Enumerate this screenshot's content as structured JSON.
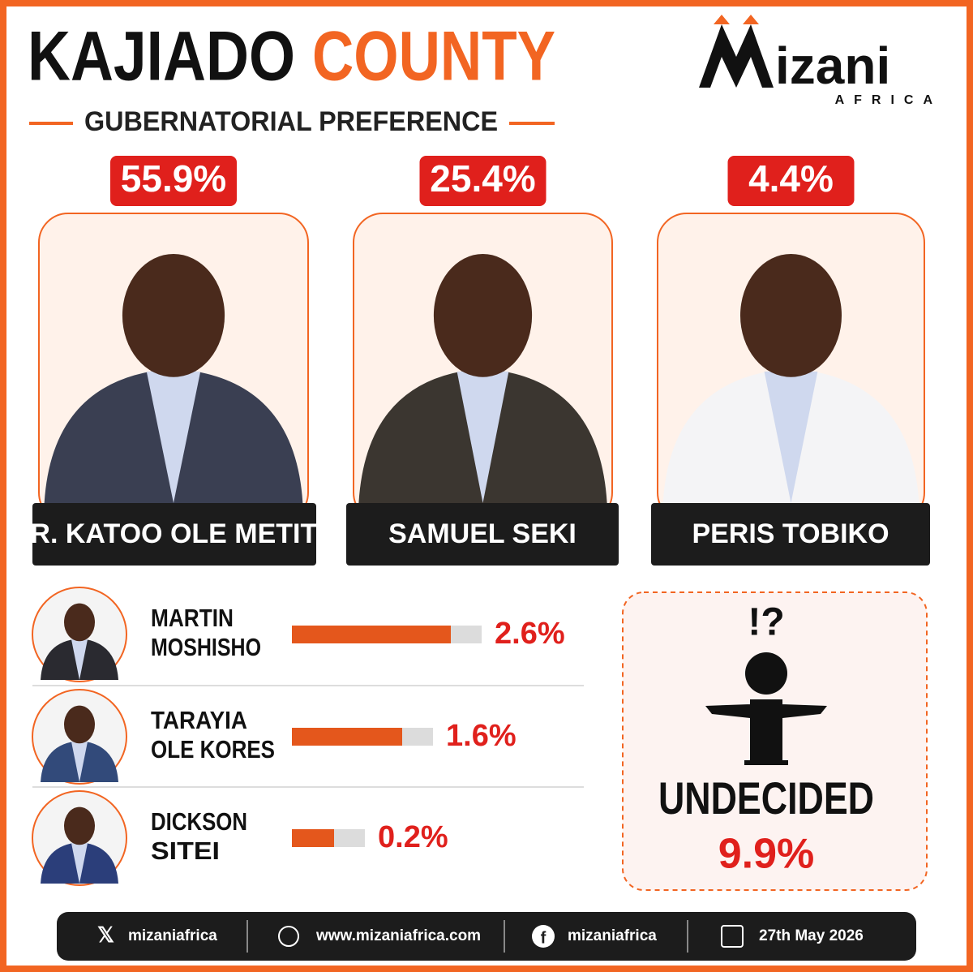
{
  "header": {
    "title_part1": "KAJIADO",
    "title_part2": "COUNTY",
    "subtitle": "GUBERNATORIAL PREFERENCE"
  },
  "logo": {
    "name": "izani",
    "tagline": "AFRICA"
  },
  "leaders": [
    {
      "name": "DR. KATOO OLE METITO",
      "share": "55.9%"
    },
    {
      "name": "SAMUEL SEKI",
      "share": "25.4%"
    },
    {
      "name": "PERIS TOBIKO",
      "share": "4.4%"
    }
  ],
  "others": [
    {
      "name": [
        "MARTIN",
        "MOSHISHO"
      ],
      "value": 2.6,
      "label": "2.6%"
    },
    {
      "name": [
        "TARAYIA",
        "OLE KORES"
      ],
      "value": 1.6,
      "label": "1.6%"
    },
    {
      "name": [
        "DICKSON",
        "SITEI"
      ],
      "value": 0.2,
      "label": "0.2%"
    }
  ],
  "undecided": {
    "icon_text": "!?",
    "label": "UNDECIDED",
    "share": "9.9%"
  },
  "footer": {
    "x": "mizaniafrica",
    "website": "www.mizaniafrica.com",
    "facebook": "mizaniafrica",
    "date": "27th May 2026"
  }
}
